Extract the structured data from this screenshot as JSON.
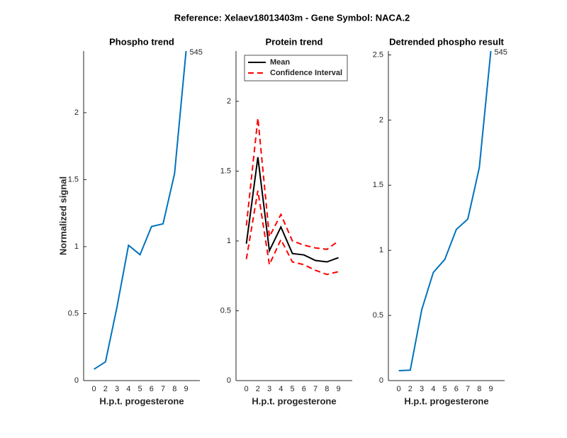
{
  "figure_title": "Reference:  Xelaev18013403m - Gene Symbol:  NACA.2",
  "chart_data": [
    {
      "type": "line",
      "title": "Phospho trend",
      "y_label": "Normalized signal",
      "x_label": "H.p.t. progesterone",
      "categories": [
        "0",
        "2",
        "3",
        "4",
        "5",
        "6",
        "7",
        "8",
        "9"
      ],
      "series": [
        {
          "name": null,
          "color": "#0072bd",
          "values": [
            0.085,
            0.14,
            0.55,
            1.01,
            0.94,
            1.15,
            1.17,
            1.545,
            2.46
          ]
        }
      ],
      "annotation": "545",
      "ylim": [
        0,
        2.46
      ],
      "yticks": [
        0,
        0.5,
        1,
        1.5,
        2
      ]
    },
    {
      "type": "line",
      "title": "Protein trend",
      "x_label": "H.p.t. progesterone",
      "categories": [
        "0",
        "2",
        "3",
        "4",
        "5",
        "6",
        "7",
        "8",
        "9"
      ],
      "series": [
        {
          "name": "Mean",
          "color": "#000000",
          "values": [
            0.98,
            1.6,
            0.93,
            1.1,
            0.91,
            0.9,
            0.86,
            0.85,
            0.88
          ]
        },
        {
          "name": "Confidence Interval",
          "color": "#ff0000",
          "dashed": true,
          "values": [
            1.11,
            1.88,
            1.03,
            1.19,
            1.0,
            0.97,
            0.95,
            0.94,
            1.0
          ],
          "lower": [
            0.87,
            1.36,
            0.83,
            1.01,
            0.85,
            0.83,
            0.79,
            0.76,
            0.78
          ]
        }
      ],
      "legend": "top-left",
      "ylim": [
        0,
        2.36
      ],
      "yticks": [
        0,
        0.5,
        1,
        1.5,
        2
      ]
    },
    {
      "type": "line",
      "title": "Detrended phospho result",
      "x_label": "H.p.t. progesterone",
      "categories": [
        "0",
        "2",
        "3",
        "4",
        "5",
        "6",
        "7",
        "8",
        "9"
      ],
      "series": [
        {
          "name": null,
          "color": "#0072bd",
          "values": [
            0.076,
            0.08,
            0.545,
            0.83,
            0.93,
            1.16,
            1.24,
            1.635,
            2.53
          ]
        }
      ],
      "annotation": "545",
      "ylim": [
        0,
        2.53
      ],
      "yticks": [
        0,
        0.5,
        1,
        1.5,
        2,
        2.5
      ]
    }
  ]
}
